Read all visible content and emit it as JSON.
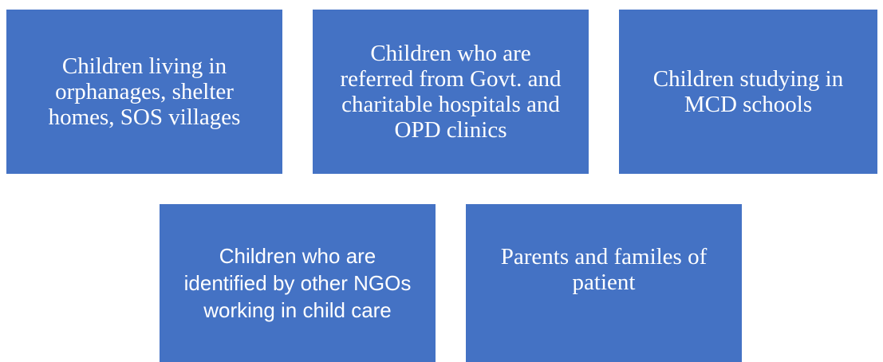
{
  "nodes": [
    {
      "lines": [
        "Children living in",
        "orphanages, shelter",
        "homes, SOS villages"
      ]
    },
    {
      "lines": [
        "Children who are",
        "referred from Govt. and",
        "charitable hospitals and",
        "OPD clinics"
      ]
    },
    {
      "lines": [
        "Children studying in",
        "MCD schools"
      ]
    },
    {
      "lines": [
        "Children who are",
        "identified by other NGOs",
        "working in child care"
      ]
    },
    {
      "lines": [
        "Parents and familes of",
        "patient"
      ]
    }
  ]
}
